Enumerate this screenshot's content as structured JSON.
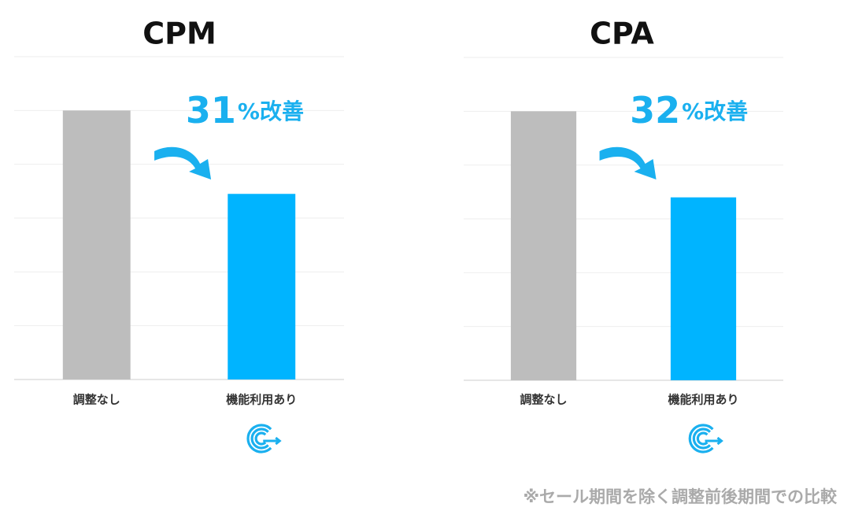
{
  "chart_data": [
    {
      "type": "bar",
      "title": "CPM",
      "categories": [
        "調整なし",
        "機能利用あり"
      ],
      "values": [
        5,
        3.45
      ],
      "colors": [
        "#bdbdbd",
        "#00b4ff"
      ],
      "ylim": [
        0,
        6
      ],
      "yticks": [
        0,
        1,
        2,
        3,
        4,
        5,
        6
      ],
      "grid": true,
      "annotation": "31",
      "annotation_unit": "%改善"
    },
    {
      "type": "bar",
      "title": "CPA",
      "categories": [
        "調整なし",
        "機能利用あり"
      ],
      "values": [
        5,
        3.4
      ],
      "colors": [
        "#bdbdbd",
        "#00b4ff"
      ],
      "ylim": [
        0,
        6
      ],
      "yticks": [
        0,
        1,
        2,
        3,
        4,
        5,
        6
      ],
      "grid": true,
      "annotation": "32",
      "annotation_unit": "%改善"
    }
  ],
  "footnote": "※セール期間を除く調整前後期間での比較"
}
